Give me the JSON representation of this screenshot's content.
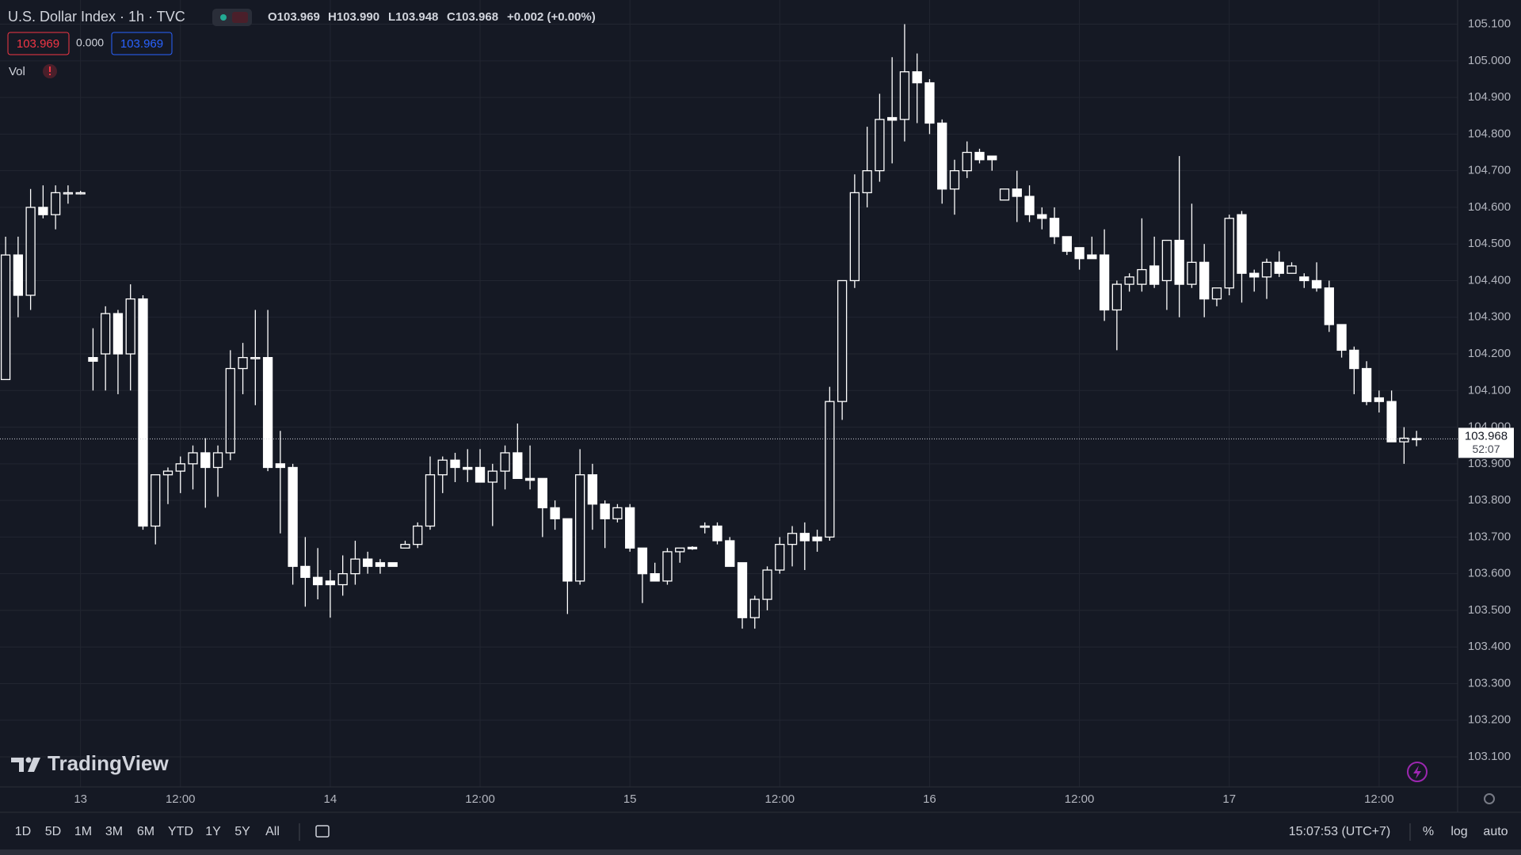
{
  "header": {
    "title": "U.S. Dollar Index · 1h · TVC",
    "ohlc": [
      {
        "key": "O",
        "value": "103.969"
      },
      {
        "key": "H",
        "value": "103.990"
      },
      {
        "key": "L",
        "value": "103.948"
      },
      {
        "key": "C",
        "value": "103.968"
      }
    ],
    "change": "+0.002 (+0.00%)"
  },
  "quote": {
    "bid": "103.969",
    "spread": "0.000",
    "ask": "103.969"
  },
  "volume_label": "Vol",
  "logo": "TradingView",
  "countdown": "52:07",
  "ranges": [
    "1D",
    "5D",
    "1M",
    "3M",
    "6M",
    "YTD",
    "1Y",
    "5Y",
    "All"
  ],
  "clock": "15:07:53 (UTC+7)",
  "scale_options": [
    "%",
    "log",
    "auto"
  ],
  "chart_data": {
    "type": "candlestick",
    "up_color": "#ffffff",
    "down_color": "#ffffff",
    "grid": true,
    "last_price": 103.968,
    "xlim": [
      -6.45,
      110.29
    ],
    "xticks": [
      {
        "value": 0,
        "label": "13"
      },
      {
        "value": 8,
        "label": "12:00"
      },
      {
        "value": 20,
        "label": "14"
      },
      {
        "value": 32,
        "label": "12:00"
      },
      {
        "value": 44,
        "label": "15"
      },
      {
        "value": 56,
        "label": "12:00"
      },
      {
        "value": 68,
        "label": "16"
      },
      {
        "value": 80,
        "label": "12:00"
      },
      {
        "value": 92,
        "label": "17"
      },
      {
        "value": 104,
        "label": "12:00"
      }
    ],
    "ylim": [
      103.018,
      105.166
    ],
    "yticks": [
      {
        "value": 103.1,
        "label": "103.100"
      },
      {
        "value": 103.2,
        "label": "103.200"
      },
      {
        "value": 103.3,
        "label": "103.300"
      },
      {
        "value": 103.4,
        "label": "103.400"
      },
      {
        "value": 103.5,
        "label": "103.500"
      },
      {
        "value": 103.6,
        "label": "103.600"
      },
      {
        "value": 103.7,
        "label": "103.700"
      },
      {
        "value": 103.8,
        "label": "103.800"
      },
      {
        "value": 103.9,
        "label": "103.900"
      },
      {
        "value": 104.0,
        "label": "104.000"
      },
      {
        "value": 104.1,
        "label": "104.100"
      },
      {
        "value": 104.2,
        "label": "104.200"
      },
      {
        "value": 104.3,
        "label": "104.300"
      },
      {
        "value": 104.4,
        "label": "104.400"
      },
      {
        "value": 104.5,
        "label": "104.500"
      },
      {
        "value": 104.6,
        "label": "104.600"
      },
      {
        "value": 104.7,
        "label": "104.700"
      },
      {
        "value": 104.8,
        "label": "104.800"
      },
      {
        "value": 104.9,
        "label": "104.900"
      },
      {
        "value": 105.0,
        "label": "105.000"
      },
      {
        "value": 105.1,
        "label": "105.100"
      }
    ],
    "x": [
      -6,
      -5,
      -4,
      -3,
      -2,
      -1,
      0,
      1,
      2,
      3,
      4,
      5,
      6,
      7,
      8,
      9,
      10,
      11,
      12,
      13,
      14,
      15,
      16,
      17,
      18,
      19,
      20,
      21,
      22,
      23,
      24,
      25,
      26,
      27,
      28,
      29,
      30,
      31,
      32,
      33,
      34,
      35,
      36,
      37,
      38,
      39,
      40,
      41,
      42,
      43,
      44,
      45,
      46,
      47,
      48,
      49,
      50,
      51,
      52,
      53,
      54,
      55,
      56,
      57,
      58,
      59,
      60,
      61,
      62,
      63,
      64,
      65,
      66,
      67,
      68,
      69,
      70,
      71,
      72,
      73,
      74,
      75,
      76,
      77,
      78,
      79,
      80,
      81,
      82,
      83,
      84,
      85,
      86,
      87,
      88,
      89,
      90,
      91,
      92,
      93,
      94,
      95,
      96,
      97,
      98,
      99,
      100,
      101,
      102,
      103,
      104,
      105,
      106,
      107
    ],
    "open": [
      104.13,
      104.47,
      104.36,
      104.6,
      104.58,
      104.64,
      104.64,
      104.19,
      104.2,
      104.31,
      104.2,
      104.35,
      103.73,
      103.87,
      103.88,
      103.9,
      103.93,
      103.89,
      103.93,
      104.16,
      104.19,
      104.19,
      103.9,
      103.89,
      103.62,
      103.59,
      103.58,
      103.57,
      103.6,
      103.64,
      103.63,
      103.63,
      103.67,
      103.68,
      103.73,
      103.87,
      103.91,
      103.89,
      103.89,
      103.85,
      103.88,
      103.93,
      103.86,
      103.86,
      103.78,
      103.75,
      103.58,
      103.87,
      103.79,
      103.75,
      103.78,
      103.67,
      103.6,
      103.58,
      103.66,
      103.672,
      103.73,
      103.73,
      103.69,
      103.63,
      103.48,
      103.53,
      103.61,
      103.68,
      103.71,
      103.7,
      103.7,
      104.07,
      104.4,
      104.64,
      104.7,
      104.845,
      104.84,
      104.97,
      104.94,
      104.83,
      104.65,
      104.7,
      104.75,
      104.74,
      104.62,
      104.65,
      104.63,
      104.58,
      104.57,
      104.52,
      104.49,
      104.47,
      104.47,
      104.32,
      104.39,
      104.39,
      104.44,
      104.4,
      104.51,
      104.39,
      104.45,
      104.35,
      104.38,
      104.58,
      104.42,
      104.41,
      104.45,
      104.42,
      104.41,
      104.4,
      104.38,
      104.28,
      104.21,
      104.16,
      104.08,
      104.07,
      103.96,
      103.969
    ],
    "high": [
      104.52,
      104.52,
      104.65,
      104.66,
      104.66,
      104.66,
      104.645,
      104.27,
      104.33,
      104.32,
      104.39,
      104.36,
      103.87,
      103.89,
      103.92,
      103.95,
      103.97,
      103.95,
      104.21,
      104.23,
      104.32,
      104.32,
      103.99,
      103.9,
      103.7,
      103.67,
      103.61,
      103.65,
      103.69,
      103.66,
      103.64,
      103.63,
      103.69,
      103.74,
      103.92,
      103.92,
      103.93,
      103.94,
      103.94,
      103.9,
      103.95,
      104.01,
      103.95,
      103.86,
      103.8,
      103.75,
      103.94,
      103.9,
      103.8,
      103.79,
      103.79,
      103.67,
      103.63,
      103.67,
      103.67,
      103.675,
      103.74,
      103.74,
      103.7,
      103.63,
      103.54,
      103.62,
      103.7,
      103.73,
      103.74,
      103.72,
      104.11,
      104.4,
      104.69,
      104.82,
      104.91,
      105.01,
      105.1,
      105.02,
      104.95,
      104.84,
      104.73,
      104.78,
      104.76,
      104.74,
      104.65,
      104.7,
      104.66,
      104.6,
      104.6,
      104.52,
      104.49,
      104.52,
      104.54,
      104.4,
      104.42,
      104.57,
      104.52,
      104.51,
      104.74,
      104.61,
      104.5,
      104.38,
      104.58,
      104.59,
      104.43,
      104.46,
      104.48,
      104.45,
      104.42,
      104.45,
      104.4,
      104.28,
      104.22,
      104.18,
      104.1,
      104.1,
      104.0,
      103.99
    ],
    "low": [
      104.13,
      104.3,
      104.32,
      104.57,
      104.54,
      104.61,
      104.635,
      104.1,
      104.1,
      104.09,
      104.1,
      103.72,
      103.68,
      103.79,
      103.82,
      103.83,
      103.78,
      103.81,
      103.91,
      104.09,
      104.06,
      103.88,
      103.71,
      103.57,
      103.51,
      103.53,
      103.48,
      103.54,
      103.57,
      103.6,
      103.6,
      103.62,
      103.67,
      103.67,
      103.72,
      103.82,
      103.85,
      103.85,
      103.85,
      103.73,
      103.83,
      103.86,
      103.83,
      103.7,
      103.72,
      103.49,
      103.57,
      103.72,
      103.67,
      103.74,
      103.66,
      103.52,
      103.58,
      103.57,
      103.63,
      103.665,
      103.71,
      103.68,
      103.62,
      103.45,
      103.45,
      103.5,
      103.6,
      103.62,
      103.61,
      103.66,
      103.69,
      104.02,
      104.38,
      104.6,
      104.67,
      104.72,
      104.78,
      104.83,
      104.8,
      104.61,
      104.58,
      104.68,
      104.72,
      104.7,
      104.62,
      104.56,
      104.56,
      104.54,
      104.5,
      104.47,
      104.43,
      104.46,
      104.29,
      104.21,
      104.37,
      104.37,
      104.38,
      104.32,
      104.3,
      104.38,
      104.3,
      104.33,
      104.36,
      104.34,
      104.37,
      104.35,
      104.41,
      104.42,
      104.38,
      104.37,
      104.26,
      104.19,
      104.09,
      104.06,
      104.04,
      103.96,
      103.9,
      103.948
    ],
    "close": [
      104.47,
      104.36,
      104.6,
      104.58,
      104.64,
      104.64,
      104.64,
      104.18,
      104.31,
      104.2,
      104.35,
      103.73,
      103.87,
      103.88,
      103.9,
      103.93,
      103.89,
      103.93,
      104.16,
      104.19,
      104.19,
      103.89,
      103.89,
      103.62,
      103.59,
      103.57,
      103.57,
      103.6,
      103.64,
      103.62,
      103.62,
      103.62,
      103.68,
      103.73,
      103.87,
      103.91,
      103.89,
      103.885,
      103.85,
      103.88,
      103.93,
      103.86,
      103.855,
      103.78,
      103.75,
      103.58,
      103.87,
      103.79,
      103.75,
      103.78,
      103.67,
      103.6,
      103.58,
      103.66,
      103.67,
      103.668,
      103.73,
      103.69,
      103.62,
      103.48,
      103.53,
      103.61,
      103.68,
      103.71,
      103.69,
      103.69,
      104.07,
      104.4,
      104.64,
      104.7,
      104.84,
      104.838,
      104.97,
      104.94,
      104.83,
      104.65,
      104.7,
      104.75,
      104.73,
      104.73,
      104.65,
      104.63,
      104.58,
      104.57,
      104.52,
      104.48,
      104.46,
      104.46,
      104.32,
      104.39,
      104.41,
      104.43,
      104.39,
      104.51,
      104.39,
      104.45,
      104.35,
      104.38,
      104.57,
      104.42,
      104.41,
      104.45,
      104.42,
      104.44,
      104.4,
      104.38,
      104.28,
      104.21,
      104.16,
      104.07,
      104.07,
      103.96,
      103.97,
      103.968
    ]
  }
}
